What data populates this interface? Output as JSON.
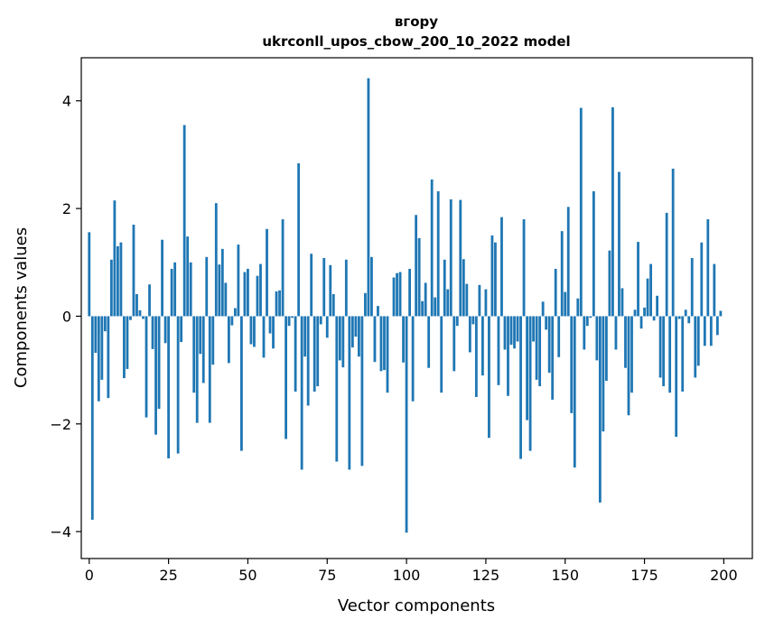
{
  "chart_data": {
    "type": "bar",
    "title_line1": "вгору",
    "title_line2": "ukrconll_upos_cbow_200_10_2022 model",
    "xlabel": "Vector components",
    "ylabel": "Components values",
    "xlim": [
      -2.5,
      209.0
    ],
    "ylim": [
      -4.5,
      4.8
    ],
    "xticks": [
      0,
      25,
      50,
      75,
      100,
      125,
      150,
      175,
      200
    ],
    "yticks": [
      -4,
      -2,
      0,
      2,
      4
    ],
    "xtick_labels": [
      "0",
      "25",
      "50",
      "75",
      "100",
      "125",
      "150",
      "175",
      "200"
    ],
    "ytick_labels": [
      "−4",
      "−2",
      "0",
      "2",
      "4"
    ],
    "bar_color": "#1f77b4",
    "grid": false,
    "values": [
      1.56,
      -3.78,
      -0.68,
      -1.58,
      -1.18,
      -0.28,
      -1.52,
      1.05,
      2.15,
      1.3,
      1.37,
      -1.15,
      -0.98,
      -0.07,
      1.7,
      0.41,
      0.11,
      -0.05,
      -1.88,
      0.59,
      -0.61,
      -2.2,
      -1.72,
      1.42,
      -0.5,
      -2.64,
      0.88,
      1.0,
      -2.55,
      -0.48,
      3.55,
      1.48,
      1.0,
      -1.42,
      -1.98,
      -0.7,
      -1.24,
      1.1,
      -1.98,
      -0.9,
      2.1,
      0.96,
      1.25,
      0.62,
      -0.87,
      -0.17,
      0.15,
      1.33,
      -2.5,
      0.82,
      0.88,
      -0.52,
      -0.57,
      0.75,
      0.97,
      -0.77,
      1.62,
      -0.32,
      -0.6,
      0.46,
      0.48,
      1.8,
      -2.28,
      -0.18,
      -0.03,
      -1.4,
      2.84,
      -2.85,
      -0.75,
      -1.66,
      1.16,
      -1.4,
      -1.3,
      -0.15,
      1.08,
      -0.4,
      0.95,
      0.41,
      -2.7,
      -0.82,
      -0.95,
      1.05,
      -2.85,
      -0.58,
      -0.38,
      -0.75,
      -2.78,
      0.43,
      4.42,
      1.1,
      -0.85,
      0.19,
      -1.02,
      -1.0,
      -1.42,
      0.0,
      0.72,
      0.8,
      0.82,
      -0.86,
      -4.02,
      0.88,
      -1.58,
      1.88,
      1.45,
      0.28,
      0.62,
      -0.96,
      2.54,
      0.35,
      2.32,
      -1.42,
      1.05,
      0.5,
      2.17,
      -1.02,
      -0.18,
      2.16,
      1.06,
      0.6,
      -0.67,
      -0.15,
      -1.5,
      0.58,
      -1.1,
      0.5,
      -2.26,
      1.5,
      1.37,
      -1.28,
      1.84,
      -0.62,
      -1.48,
      -0.53,
      -0.6,
      -0.47,
      -2.65,
      1.8,
      -1.93,
      -2.5,
      -0.47,
      -1.18,
      -1.3,
      0.27,
      -0.25,
      -1.05,
      -1.55,
      0.88,
      -0.76,
      1.58,
      0.45,
      2.03,
      -1.8,
      -2.81,
      0.33,
      3.87,
      -0.62,
      -0.18,
      -0.03,
      2.32,
      -0.82,
      -3.46,
      -2.14,
      -1.2,
      1.22,
      3.88,
      -0.62,
      2.68,
      0.52,
      -0.96,
      -1.84,
      -1.42,
      0.12,
      1.38,
      -0.23,
      0.16,
      0.7,
      0.97,
      -0.08,
      0.38,
      -1.14,
      -1.3,
      1.92,
      -1.42,
      2.74,
      -2.24,
      -0.05,
      -1.4,
      0.12,
      -0.13,
      1.08,
      -1.14,
      -0.92,
      1.37,
      -0.55,
      1.8,
      -0.55,
      0.97,
      -0.35,
      0.1
    ]
  }
}
